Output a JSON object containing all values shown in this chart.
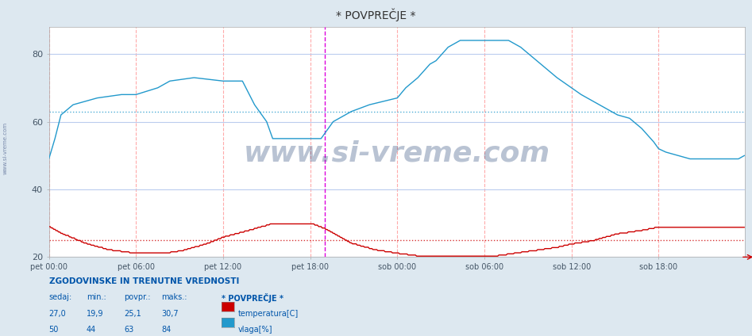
{
  "title": "* POVPREČJE *",
  "bg_color": "#dde8f0",
  "plot_bg_color": "#ffffff",
  "grid_color_v": "#ffaaaa",
  "grid_color_h": "#bbccee",
  "ylim": [
    20,
    88
  ],
  "yticks": [
    20,
    40,
    60,
    80
  ],
  "tick_label_color": "#445566",
  "temp_color": "#cc0000",
  "humidity_color": "#2299cc",
  "temp_avg_line": 25.1,
  "humidity_avg_line": 63,
  "vline_color": "#dd00dd",
  "vline_pos": 228,
  "total_points": 576,
  "x_tick_positions": [
    0,
    72,
    144,
    216,
    288,
    360,
    432,
    504
  ],
  "x_tick_labels": [
    "pet 00:00",
    "pet 06:00",
    "pet 12:00",
    "pet 18:00",
    "sob 00:00",
    "sob 06:00",
    "sob 12:00",
    "sob 18:00"
  ],
  "watermark": "www.si-vreme.com",
  "watermark_color": "#1a3a6e",
  "watermark_alpha": 0.3,
  "left_label": "www.si-vreme.com",
  "title_color": "#333333",
  "footer_title": "ZGODOVINSKE IN TRENUTNE VREDNOSTI",
  "footer_header": [
    "sedaj:",
    "min.:",
    "povpr.:",
    "maks.:",
    "* POVPREČJE *"
  ],
  "footer_color": "#0055aa",
  "footer_rows": [
    {
      "sedaj": "27,0",
      "min": "19,9",
      "povpr": "25,1",
      "maks": "30,7",
      "name": "temperatura[C]",
      "color": "#cc0000"
    },
    {
      "sedaj": "50",
      "min": "44",
      "povpr": "63",
      "maks": "84",
      "name": "vlaga[%]",
      "color": "#2299cc"
    }
  ]
}
